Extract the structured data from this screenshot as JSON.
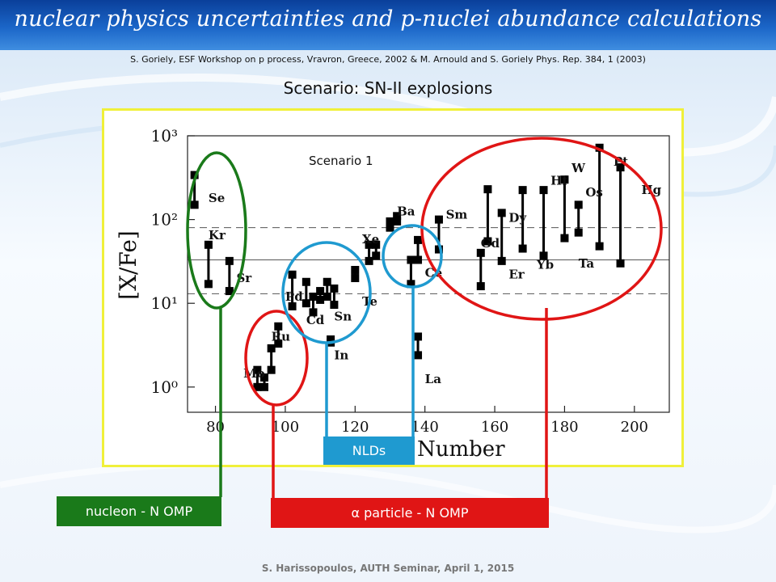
{
  "slide": {
    "title": "nuclear physics uncertainties and p-nuclei abundance calculations",
    "subtitle": "S. Goriely, ESF Workshop on p process, Vravron, Greece, 2002  &  M. Arnould and S. Goriely Phys. Rep. 384, 1 (2003)",
    "scenario": "Scenario:  SN-II explosions",
    "footer": "S. Harissopoulos, AUTH Seminar, April 1, 2015"
  },
  "boxes": {
    "nucleon": "nucleon - N  OMP",
    "alpha": "α particle - N  OMP",
    "nld": "NLDs"
  },
  "colors": {
    "banner": "#1b66c8",
    "frame": "#f0f03a",
    "green": "#1a7a1a",
    "red": "#e01515",
    "blue": "#1f9ad0"
  },
  "chart_data": {
    "type": "scatter",
    "title": "Scenario 1",
    "xlabel": "Number",
    "ylabel": "[X/Fe]",
    "xlim": [
      72,
      210
    ],
    "ylim": [
      0.5,
      1000
    ],
    "yscale": "log",
    "xticks": [
      80,
      100,
      120,
      140,
      160,
      180,
      200
    ],
    "yticks": [
      {
        "value": 1,
        "label": "10⁰"
      },
      {
        "value": 10,
        "label": "10¹"
      },
      {
        "value": 100,
        "label": "10²"
      },
      {
        "value": 1000,
        "label": "10³"
      }
    ],
    "reference_lines": [
      {
        "value": 33,
        "style": "solid"
      },
      {
        "value": 80,
        "style": "dashed"
      },
      {
        "value": 13,
        "style": "dashed"
      }
    ],
    "ranges": [
      {
        "x": 74,
        "ymin": 150,
        "ymax": 340
      },
      {
        "x": 78,
        "ymin": 17,
        "ymax": 50
      },
      {
        "x": 84,
        "ymin": 14,
        "ymax": 32
      },
      {
        "x": 92,
        "ymin": 1.0,
        "ymax": 1.6
      },
      {
        "x": 94,
        "ymin": 1.0,
        "ymax": 1.3
      },
      {
        "x": 96,
        "ymin": 1.6,
        "ymax": 2.9
      },
      {
        "x": 98,
        "ymin": 3.3,
        "ymax": 5.3
      },
      {
        "x": 102,
        "ymin": 9.2,
        "ymax": 22
      },
      {
        "x": 106,
        "ymin": 10,
        "ymax": 18
      },
      {
        "x": 108,
        "ymin": 7.8,
        "ymax": 12
      },
      {
        "x": 110,
        "ymin": 11,
        "ymax": 14
      },
      {
        "x": 112,
        "ymin": 12,
        "ymax": 18
      },
      {
        "x": 114,
        "ymin": 9.6,
        "ymax": 15
      },
      {
        "x": 113,
        "ymin": 3.4,
        "ymax": 3.7
      },
      {
        "x": 120,
        "ymin": 20,
        "ymax": 25
      },
      {
        "x": 124,
        "ymin": 32,
        "ymax": 50
      },
      {
        "x": 126,
        "ymin": 37,
        "ymax": 50
      },
      {
        "x": 130,
        "ymin": 80,
        "ymax": 95
      },
      {
        "x": 132,
        "ymin": 95,
        "ymax": 110
      },
      {
        "x": 136,
        "ymin": 17,
        "ymax": 33
      },
      {
        "x": 138,
        "ymin": 2.4,
        "ymax": 4.0
      },
      {
        "x": 138,
        "ymin": 33,
        "ymax": 57
      },
      {
        "x": 144,
        "ymin": 44,
        "ymax": 100
      },
      {
        "x": 156,
        "ymin": 16,
        "ymax": 40
      },
      {
        "x": 158,
        "ymin": 55,
        "ymax": 230
      },
      {
        "x": 162,
        "ymin": 32,
        "ymax": 120
      },
      {
        "x": 168,
        "ymin": 45,
        "ymax": 225
      },
      {
        "x": 174,
        "ymin": 37,
        "ymax": 225
      },
      {
        "x": 180,
        "ymin": 60,
        "ymax": 300
      },
      {
        "x": 184,
        "ymin": 70,
        "ymax": 150
      },
      {
        "x": 190,
        "ymin": 48,
        "ymax": 720
      },
      {
        "x": 196,
        "ymin": 30,
        "ymax": 420
      }
    ],
    "annotations": [
      {
        "text": "Se",
        "x": 78,
        "y": 180
      },
      {
        "text": "Kr",
        "x": 78,
        "y": 65
      },
      {
        "text": "Sr",
        "x": 86,
        "y": 20
      },
      {
        "text": "Ru",
        "x": 96,
        "y": 4.0
      },
      {
        "text": "Mo",
        "x": 88,
        "y": 1.45
      },
      {
        "text": "Pd",
        "x": 100,
        "y": 12
      },
      {
        "text": "Cd",
        "x": 106,
        "y": 6.3
      },
      {
        "text": "Sn",
        "x": 114,
        "y": 7.0
      },
      {
        "text": "In",
        "x": 114,
        "y": 2.4
      },
      {
        "text": "Te",
        "x": 122,
        "y": 10.5
      },
      {
        "text": "Xe",
        "x": 122,
        "y": 58
      },
      {
        "text": "Ba",
        "x": 132,
        "y": 125
      },
      {
        "text": "Ce",
        "x": 140,
        "y": 23
      },
      {
        "text": "La",
        "x": 140,
        "y": 1.25
      },
      {
        "text": "Sm",
        "x": 146,
        "y": 115
      },
      {
        "text": "Dy",
        "x": 164,
        "y": 105
      },
      {
        "text": "Gd",
        "x": 156,
        "y": 52
      },
      {
        "text": "Er",
        "x": 164,
        "y": 22
      },
      {
        "text": "Yb",
        "x": 172,
        "y": 29
      },
      {
        "text": "Hf",
        "x": 176,
        "y": 290
      },
      {
        "text": "W",
        "x": 182,
        "y": 410
      },
      {
        "text": "Ta",
        "x": 184,
        "y": 30
      },
      {
        "text": "Os",
        "x": 186,
        "y": 210
      },
      {
        "text": "Pt",
        "x": 194,
        "y": 490
      },
      {
        "text": "Hg",
        "x": 202,
        "y": 225
      }
    ]
  }
}
